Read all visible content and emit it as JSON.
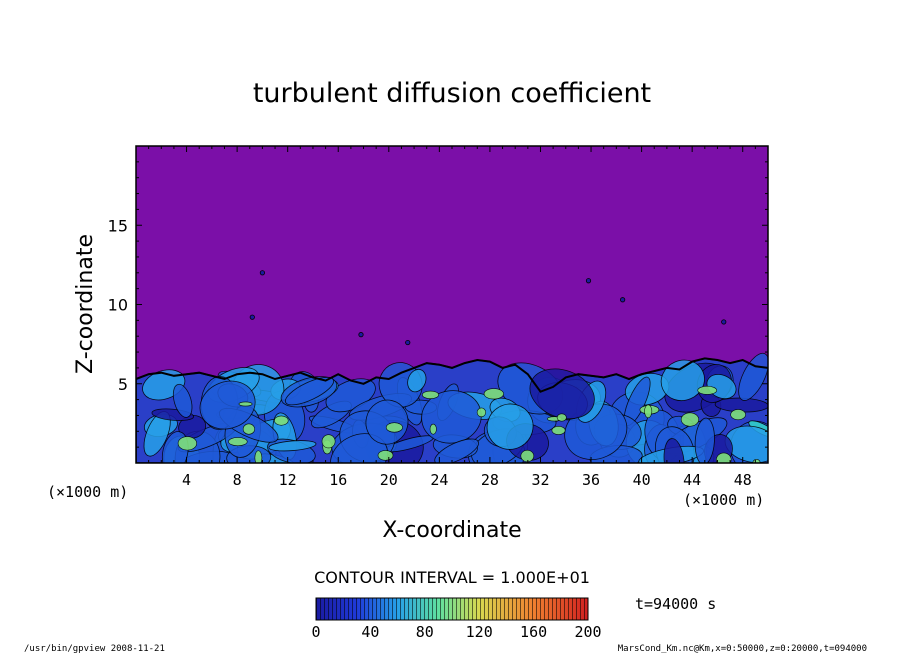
{
  "chart_data": {
    "type": "heatmap",
    "title": "turbulent diffusion coefficient",
    "xlabel": "X-coordinate",
    "ylabel": "Z-coordinate",
    "x_unit_left": "(×1000 m)",
    "x_unit_right": "(×1000 m)",
    "xlim": [
      0,
      50
    ],
    "ylim": [
      0,
      20
    ],
    "x_ticks": [
      "4",
      "8",
      "12",
      "16",
      "20",
      "24",
      "28",
      "32",
      "36",
      "40",
      "44",
      "48"
    ],
    "y_ticks": [
      "5",
      "10",
      "15"
    ],
    "background_value": 0,
    "boundary_layer_top": [
      [
        0,
        5.3
      ],
      [
        1,
        5.6
      ],
      [
        2,
        5.7
      ],
      [
        3,
        5.5
      ],
      [
        4,
        5.6
      ],
      [
        5,
        5.7
      ],
      [
        6,
        5.5
      ],
      [
        7,
        5.3
      ],
      [
        8,
        5.6
      ],
      [
        9,
        5.7
      ],
      [
        10,
        5.6
      ],
      [
        11,
        5.3
      ],
      [
        12,
        5.5
      ],
      [
        13,
        5.7
      ],
      [
        14,
        5.4
      ],
      [
        15,
        5.2
      ],
      [
        16,
        5.6
      ],
      [
        17,
        5.2
      ],
      [
        18,
        5.0
      ],
      [
        19,
        5.4
      ],
      [
        20,
        5.3
      ],
      [
        21,
        5.7
      ],
      [
        22,
        6.0
      ],
      [
        23,
        6.3
      ],
      [
        24,
        6.2
      ],
      [
        25,
        6.0
      ],
      [
        26,
        6.3
      ],
      [
        27,
        6.5
      ],
      [
        28,
        6.4
      ],
      [
        29,
        6.0
      ],
      [
        30,
        6.2
      ],
      [
        31,
        5.6
      ],
      [
        32,
        4.5
      ],
      [
        33,
        4.8
      ],
      [
        34,
        5.4
      ],
      [
        35,
        5.6
      ],
      [
        36,
        5.5
      ],
      [
        37,
        5.4
      ],
      [
        38,
        5.6
      ],
      [
        39,
        5.3
      ],
      [
        40,
        5.6
      ],
      [
        41,
        5.8
      ],
      [
        42,
        6.0
      ],
      [
        43,
        5.9
      ],
      [
        44,
        6.4
      ],
      [
        45,
        6.6
      ],
      [
        46,
        6.5
      ],
      [
        47,
        6.3
      ],
      [
        48,
        6.5
      ],
      [
        49,
        6.1
      ],
      [
        50,
        6.0
      ]
    ],
    "colorbar": {
      "min": 0,
      "max": 200,
      "ticks": [
        "0",
        "40",
        "80",
        "120",
        "160",
        "200"
      ],
      "colors": [
        "#5a1a9a",
        "#1a1aa0",
        "#1f5ad8",
        "#27a0e8",
        "#33d6c8",
        "#7fe07a",
        "#d8d850",
        "#f08030",
        "#d02020"
      ]
    },
    "contour_interval": "CONTOUR INTERVAL = 1.000E+01",
    "time_label": "t=94000 s"
  },
  "footer": {
    "left": "/usr/bin/gpview   2008-11-21",
    "right": "MarsCond_Km.nc@Km,x=0:50000,z=0:20000,t=094000"
  }
}
